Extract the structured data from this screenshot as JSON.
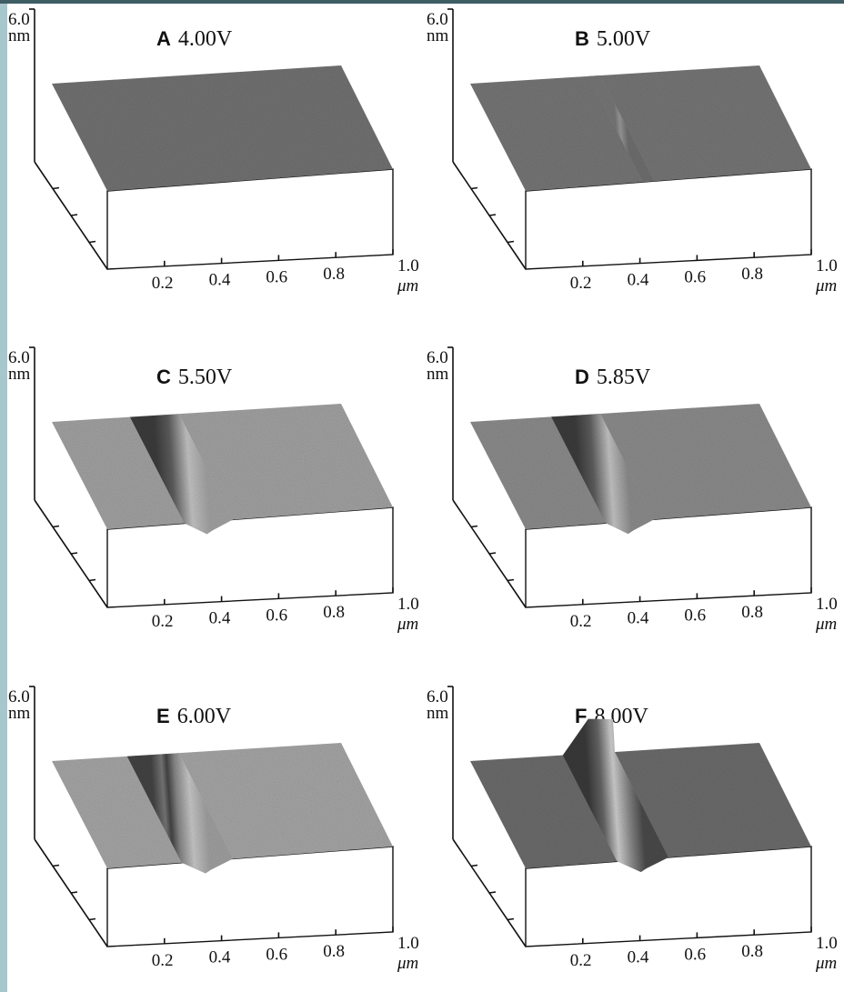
{
  "panels": [
    {
      "letter": "A",
      "voltage": "4.00V",
      "z_max": "6.0",
      "z_unit": "nm",
      "x_ticks": [
        "0.2",
        "0.4",
        "0.6",
        "0.8",
        "1.0"
      ],
      "x_unit": "μm"
    },
    {
      "letter": "B",
      "voltage": "5.00V",
      "z_max": "6.0",
      "z_unit": "nm",
      "x_ticks": [
        "0.2",
        "0.4",
        "0.6",
        "0.8",
        "1.0"
      ],
      "x_unit": "μm"
    },
    {
      "letter": "C",
      "voltage": "5.50V",
      "z_max": "6.0",
      "z_unit": "nm",
      "x_ticks": [
        "0.2",
        "0.4",
        "0.6",
        "0.8",
        "1.0"
      ],
      "x_unit": "μm"
    },
    {
      "letter": "D",
      "voltage": "5.85V",
      "z_max": "6.0",
      "z_unit": "nm",
      "x_ticks": [
        "0.2",
        "0.4",
        "0.6",
        "0.8",
        "1.0"
      ],
      "x_unit": "μm"
    },
    {
      "letter": "E",
      "voltage": "6.00V",
      "z_max": "6.0",
      "z_unit": "nm",
      "x_ticks": [
        "0.2",
        "0.4",
        "0.6",
        "0.8",
        "1.0"
      ],
      "x_unit": "μm"
    },
    {
      "letter": "F",
      "voltage": "8.00V",
      "z_max": "6.0",
      "z_unit": "nm",
      "x_ticks": [
        "0.2",
        "0.4",
        "0.6",
        "0.8",
        "1.0"
      ],
      "x_unit": "μm"
    }
  ]
}
